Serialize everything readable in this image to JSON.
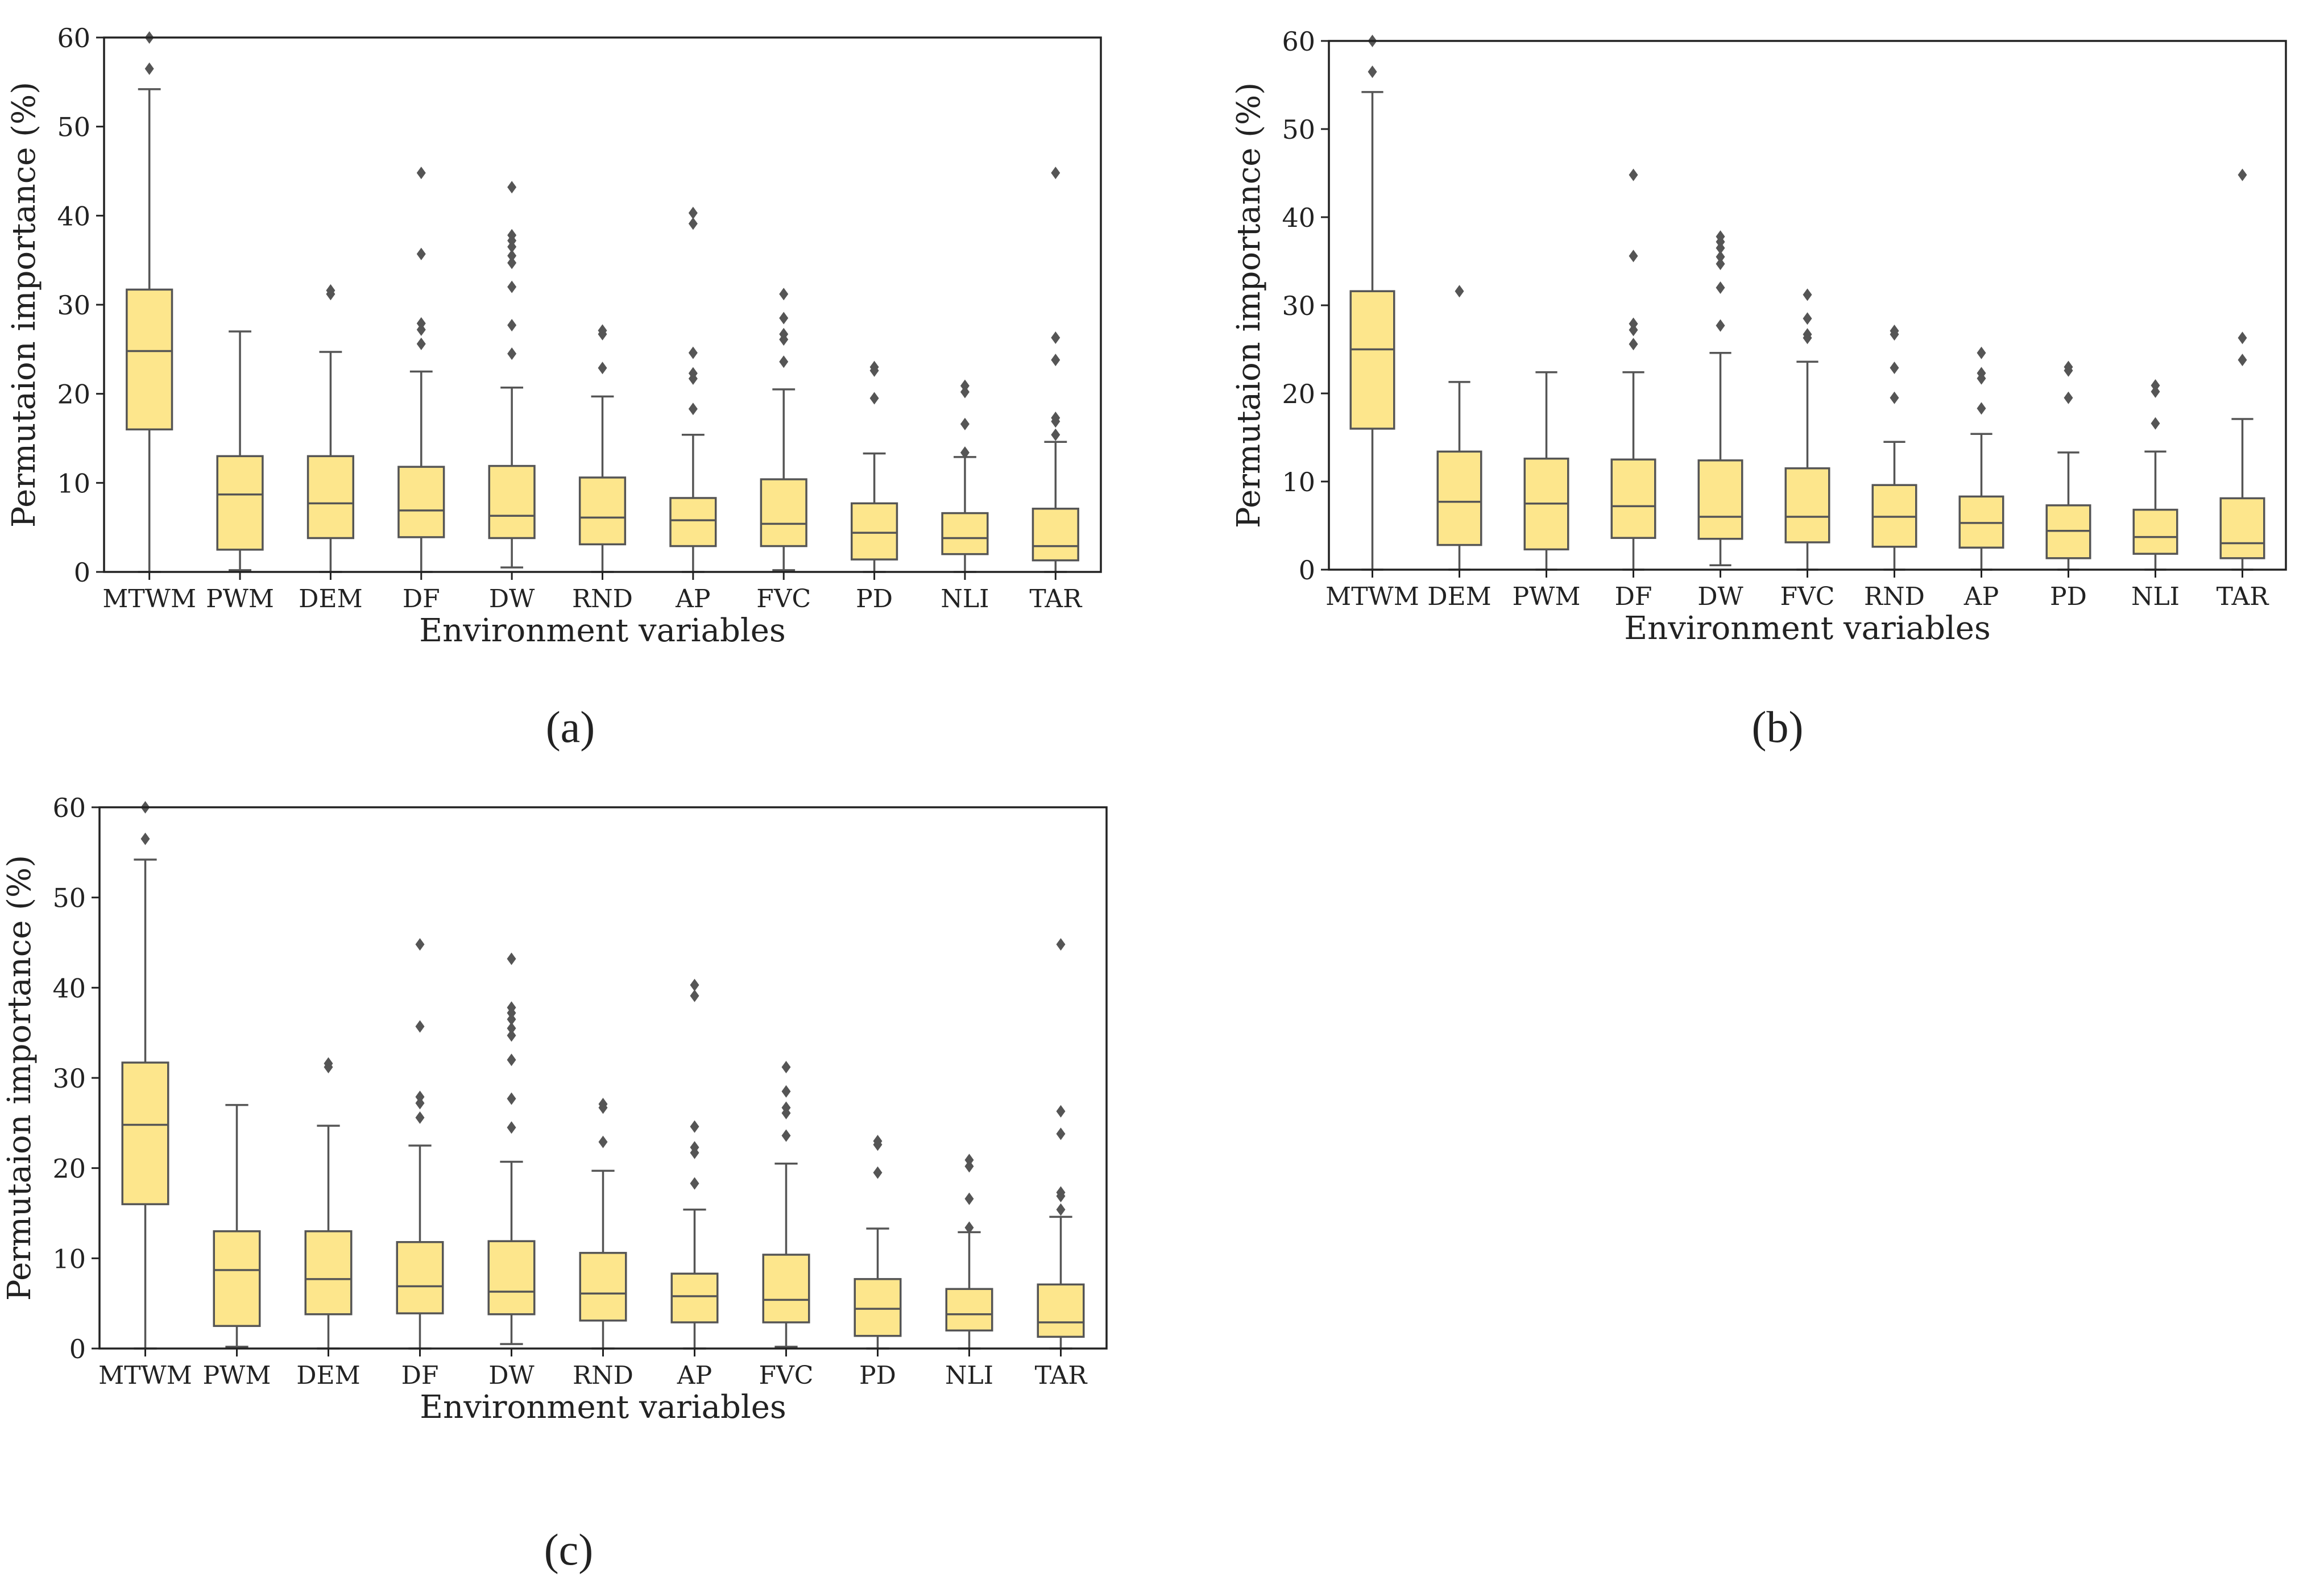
{
  "colors": {
    "box_fill": "#fde68c",
    "box_edge": "#555555",
    "flier": "#555555",
    "axis": "#222222"
  },
  "panels": [
    {
      "caption": "(a)"
    },
    {
      "caption": "(b)"
    },
    {
      "caption": "(c)"
    }
  ],
  "chart_data": [
    {
      "type": "box",
      "panel": "a",
      "xlabel": "Environment variables",
      "ylabel": "Permutaion importance (%)",
      "ylim": [
        0,
        60
      ],
      "yticks": [
        0,
        10,
        20,
        30,
        40,
        50,
        60
      ],
      "categories": [
        "MTWM",
        "PWM",
        "DEM",
        "DF",
        "DW",
        "RND",
        "AP",
        "FVC",
        "PD",
        "NLI",
        "TAR"
      ],
      "boxes": [
        {
          "whislo": 0,
          "q1": 16,
          "med": 24.8,
          "q3": 31.7,
          "whishi": 54.2,
          "fliers": [
            56.5,
            60
          ]
        },
        {
          "whislo": 0.2,
          "q1": 2.5,
          "med": 8.7,
          "q3": 13,
          "whishi": 27,
          "fliers": []
        },
        {
          "whislo": 0,
          "q1": 3.8,
          "med": 7.7,
          "q3": 13,
          "whishi": 24.7,
          "fliers": [
            31.2,
            31.6
          ]
        },
        {
          "whislo": 0,
          "q1": 3.9,
          "med": 6.9,
          "q3": 11.8,
          "whishi": 22.5,
          "fliers": [
            25.6,
            27.2,
            27.9,
            35.7,
            44.8
          ]
        },
        {
          "whislo": 0.5,
          "q1": 3.8,
          "med": 6.3,
          "q3": 11.9,
          "whishi": 20.7,
          "fliers": [
            24.5,
            27.7,
            32,
            34.7,
            35.5,
            36.5,
            37.2,
            37.8,
            43.2
          ]
        },
        {
          "whislo": 0,
          "q1": 3.1,
          "med": 6.1,
          "q3": 10.6,
          "whishi": 19.7,
          "fliers": [
            22.9,
            26.7,
            27.1
          ]
        },
        {
          "whislo": 0,
          "q1": 2.9,
          "med": 5.8,
          "q3": 8.3,
          "whishi": 15.4,
          "fliers": [
            18.3,
            21.7,
            22.3,
            24.6,
            39.1,
            40.3
          ]
        },
        {
          "whislo": 0.2,
          "q1": 2.9,
          "med": 5.4,
          "q3": 10.4,
          "whishi": 20.5,
          "fliers": [
            23.6,
            26.1,
            26.7,
            28.5,
            31.2
          ]
        },
        {
          "whislo": 0,
          "q1": 1.4,
          "med": 4.4,
          "q3": 7.7,
          "whishi": 13.3,
          "fliers": [
            19.5,
            22.6,
            23
          ]
        },
        {
          "whislo": 0,
          "q1": 2,
          "med": 3.8,
          "q3": 6.6,
          "whishi": 12.9,
          "fliers": [
            13.4,
            16.6,
            20.2,
            20.9
          ]
        },
        {
          "whislo": 0,
          "q1": 1.3,
          "med": 2.9,
          "q3": 7.1,
          "whishi": 14.6,
          "fliers": [
            15.4,
            16.9,
            17.3,
            23.8,
            26.3,
            44.8
          ]
        }
      ]
    },
    {
      "type": "box",
      "panel": "b",
      "xlabel": "Environment variables",
      "ylabel": "Permutaion importance (%)",
      "ylim": [
        0,
        60
      ],
      "yticks": [
        0,
        10,
        20,
        30,
        40,
        50,
        60
      ],
      "categories": [
        "MTWM",
        "DEM",
        "PWM",
        "DF",
        "DW",
        "FVC",
        "RND",
        "AP",
        "PD",
        "NLI",
        "TAR"
      ],
      "boxes": [
        {
          "whislo": 0,
          "q1": 16,
          "med": 25,
          "q3": 31.6,
          "whishi": 54.2,
          "fliers": [
            56.5,
            60
          ]
        },
        {
          "whislo": 0,
          "q1": 2.8,
          "med": 7.7,
          "q3": 13.4,
          "whishi": 21.3,
          "fliers": [
            31.6
          ]
        },
        {
          "whislo": 0,
          "q1": 2.3,
          "med": 7.5,
          "q3": 12.6,
          "whishi": 22.4,
          "fliers": []
        },
        {
          "whislo": 0,
          "q1": 3.6,
          "med": 7.2,
          "q3": 12.5,
          "whishi": 22.4,
          "fliers": [
            25.6,
            27.2,
            27.9,
            35.6,
            44.8
          ]
        },
        {
          "whislo": 0.5,
          "q1": 3.5,
          "med": 6,
          "q3": 12.4,
          "whishi": 24.6,
          "fliers": [
            27.7,
            32,
            34.7,
            35.5,
            36.5,
            37.2,
            37.8
          ]
        },
        {
          "whislo": 0,
          "q1": 3.1,
          "med": 6,
          "q3": 11.5,
          "whishi": 23.6,
          "fliers": [
            26.3,
            26.7,
            28.5,
            31.2
          ]
        },
        {
          "whislo": 0,
          "q1": 2.6,
          "med": 6,
          "q3": 9.6,
          "whishi": 14.5,
          "fliers": [
            19.5,
            22.9,
            26.7,
            27.1
          ]
        },
        {
          "whislo": 0,
          "q1": 2.5,
          "med": 5.3,
          "q3": 8.3,
          "whishi": 15.4,
          "fliers": [
            18.3,
            21.7,
            22.3,
            24.6
          ]
        },
        {
          "whislo": 0,
          "q1": 1.3,
          "med": 4.4,
          "q3": 7.3,
          "whishi": 13.3,
          "fliers": [
            19.5,
            22.6,
            23
          ]
        },
        {
          "whislo": 0,
          "q1": 1.8,
          "med": 3.7,
          "q3": 6.8,
          "whishi": 13.4,
          "fliers": [
            16.6,
            20.2,
            20.9
          ]
        },
        {
          "whislo": 0,
          "q1": 1.3,
          "med": 3,
          "q3": 8.1,
          "whishi": 17.1,
          "fliers": [
            23.8,
            26.3,
            44.8
          ]
        }
      ]
    },
    {
      "type": "box",
      "panel": "c",
      "xlabel": "Environment variables",
      "ylabel": "Permutaion importance (%)",
      "ylim": [
        0,
        60
      ],
      "yticks": [
        0,
        10,
        20,
        30,
        40,
        50,
        60
      ],
      "categories": [
        "MTWM",
        "PWM",
        "DEM",
        "DF",
        "DW",
        "RND",
        "AP",
        "FVC",
        "PD",
        "NLI",
        "TAR"
      ],
      "boxes": [
        {
          "whislo": 0,
          "q1": 16,
          "med": 24.8,
          "q3": 31.7,
          "whishi": 54.2,
          "fliers": [
            56.5,
            60
          ]
        },
        {
          "whislo": 0.2,
          "q1": 2.5,
          "med": 8.7,
          "q3": 13,
          "whishi": 27,
          "fliers": []
        },
        {
          "whislo": 0,
          "q1": 3.8,
          "med": 7.7,
          "q3": 13,
          "whishi": 24.7,
          "fliers": [
            31.2,
            31.6
          ]
        },
        {
          "whislo": 0,
          "q1": 3.9,
          "med": 6.9,
          "q3": 11.8,
          "whishi": 22.5,
          "fliers": [
            25.6,
            27.2,
            27.9,
            35.7,
            44.8
          ]
        },
        {
          "whislo": 0.5,
          "q1": 3.8,
          "med": 6.3,
          "q3": 11.9,
          "whishi": 20.7,
          "fliers": [
            24.5,
            27.7,
            32,
            34.7,
            35.5,
            36.5,
            37.2,
            37.8,
            43.2
          ]
        },
        {
          "whislo": 0,
          "q1": 3.1,
          "med": 6.1,
          "q3": 10.6,
          "whishi": 19.7,
          "fliers": [
            22.9,
            26.7,
            27.1
          ]
        },
        {
          "whislo": 0,
          "q1": 2.9,
          "med": 5.8,
          "q3": 8.3,
          "whishi": 15.4,
          "fliers": [
            18.3,
            21.7,
            22.3,
            24.6,
            39.1,
            40.3
          ]
        },
        {
          "whislo": 0.2,
          "q1": 2.9,
          "med": 5.4,
          "q3": 10.4,
          "whishi": 20.5,
          "fliers": [
            23.6,
            26.1,
            26.7,
            28.5,
            31.2
          ]
        },
        {
          "whislo": 0,
          "q1": 1.4,
          "med": 4.4,
          "q3": 7.7,
          "whishi": 13.3,
          "fliers": [
            19.5,
            22.6,
            23
          ]
        },
        {
          "whislo": 0,
          "q1": 2,
          "med": 3.8,
          "q3": 6.6,
          "whishi": 12.9,
          "fliers": [
            13.4,
            16.6,
            20.2,
            20.9
          ]
        },
        {
          "whislo": 0,
          "q1": 1.3,
          "med": 2.9,
          "q3": 7.1,
          "whishi": 14.6,
          "fliers": [
            15.4,
            16.9,
            17.3,
            23.8,
            26.3,
            44.8
          ]
        }
      ]
    }
  ]
}
